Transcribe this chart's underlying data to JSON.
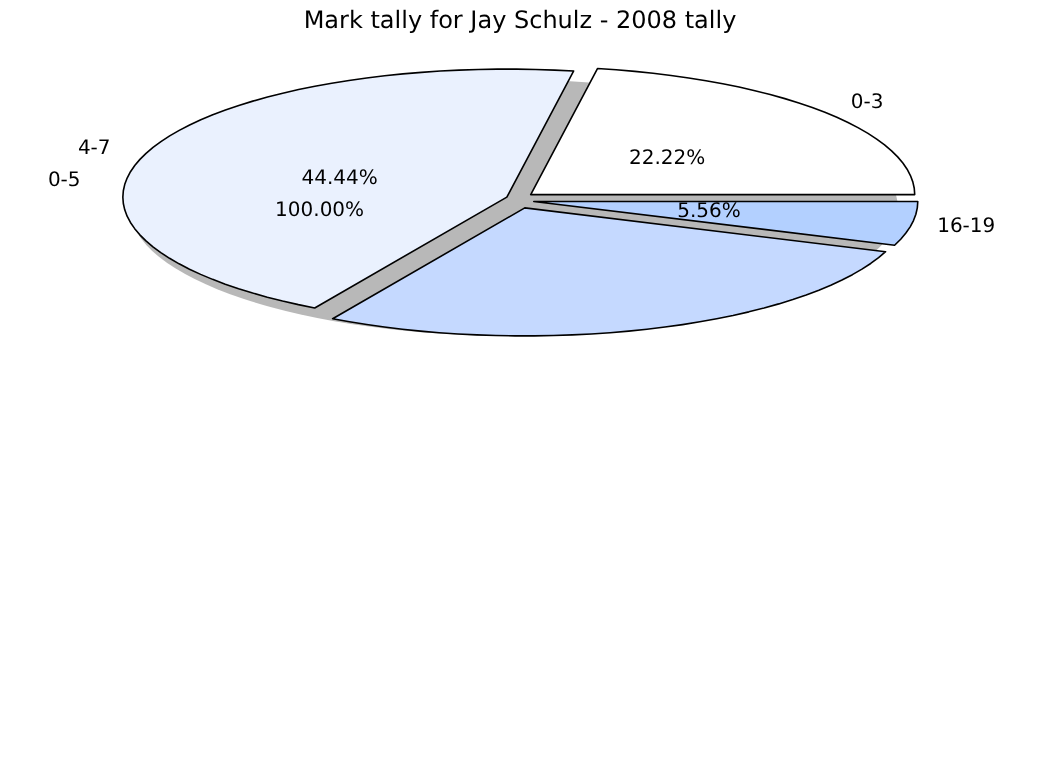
{
  "chart_data": {
    "type": "pie",
    "title": "Mark tally for Jay Schulz - 2008 tally",
    "categories": [
      "0-3",
      "4-7",
      null,
      "16-19"
    ],
    "values": [
      22.22,
      44.44,
      27.78,
      5.56
    ],
    "colors": [
      "#ffffff",
      "#eaf1fe",
      "#c5d9ff",
      "#b3d0ff"
    ],
    "value_labels": [
      "22.22%",
      "44.44%",
      null,
      "5.56%"
    ],
    "annotations": [
      "0-5",
      "100.00%"
    ]
  }
}
